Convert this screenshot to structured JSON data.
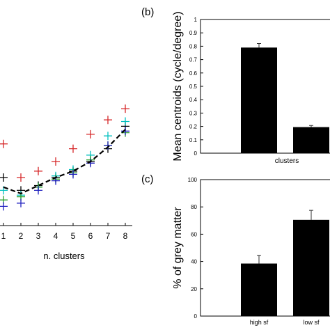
{
  "chart_data": [
    {
      "panel_label": "",
      "type": "scatter",
      "xlabel": "n. clusters",
      "ylabel": "",
      "xlim": [
        0.75,
        8.2
      ],
      "ylim": [
        0,
        1
      ],
      "x": [
        1,
        2,
        3,
        4,
        5,
        6,
        7,
        8
      ],
      "x_ticks": [
        "1",
        "2",
        "3",
        "4",
        "5",
        "6",
        "7",
        "8"
      ],
      "series": [
        {
          "color": "#d62728",
          "marker": "+",
          "values": [
            0.51,
            0.3,
            0.34,
            0.4,
            0.48,
            0.57,
            0.66,
            0.73
          ]
        },
        {
          "color": "#000000",
          "marker": "+",
          "values": [
            0.3,
            0.22,
            0.25,
            0.3,
            0.34,
            0.4,
            0.48,
            0.62
          ]
        },
        {
          "color": "#00bfbf",
          "marker": "+",
          "values": [
            0.22,
            0.19,
            0.24,
            0.31,
            0.35,
            0.44,
            0.56,
            0.65
          ]
        },
        {
          "color": "#2ca02c",
          "marker": "+",
          "values": [
            0.16,
            0.18,
            0.24,
            0.29,
            0.33,
            0.41,
            0.5,
            0.58
          ]
        },
        {
          "color": "#1f1fbf",
          "marker": "+",
          "values": [
            0.12,
            0.14,
            0.22,
            0.28,
            0.32,
            0.39,
            0.5,
            0.59
          ]
        }
      ],
      "mean_line": {
        "style": "dashed",
        "color": "#000000",
        "values": [
          0.24,
          0.2,
          0.25,
          0.3,
          0.34,
          0.4,
          0.49,
          0.6
        ]
      }
    },
    {
      "panel_label": "(b)",
      "type": "bar",
      "categories": [
        "",
        ""
      ],
      "category_axis_label": "clusters",
      "values": [
        0.79,
        0.195
      ],
      "errors": [
        0.03,
        0.012
      ],
      "bar_color": "#000000",
      "ylabel": "Mean centroids (cycle/degree)",
      "ylim": [
        0,
        1
      ],
      "yticks": [
        "0",
        "0.1",
        "0.2",
        "0.3",
        "0.4",
        "0.5",
        "0.6",
        "0.7",
        "0.8",
        "0.9",
        "1"
      ]
    },
    {
      "panel_label": "(c)",
      "type": "bar",
      "categories": [
        "high sf",
        "low sf"
      ],
      "values": [
        38.5,
        70.5
      ],
      "errors": [
        6.0,
        7.0
      ],
      "bar_color": "#000000",
      "ylabel": "% of grey matter",
      "ylim": [
        0,
        100
      ],
      "yticks": [
        "0",
        "20",
        "40",
        "60",
        "80",
        "100"
      ]
    }
  ]
}
